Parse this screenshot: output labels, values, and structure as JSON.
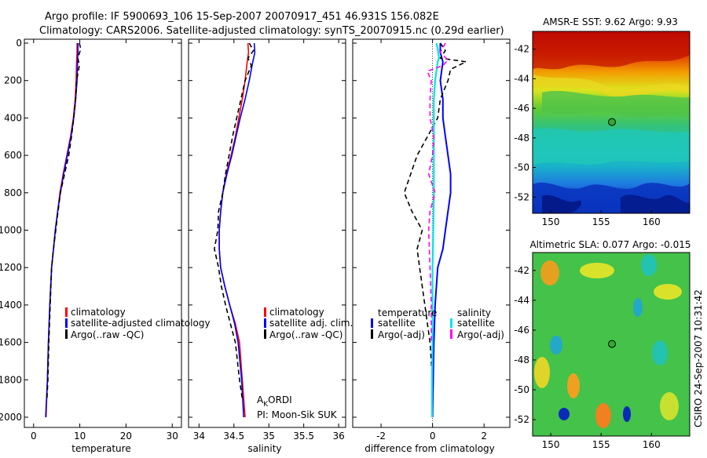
{
  "header": {
    "line1": "Argo profile: IF 5900693_106 15-Sep-2007 20070917_451 46.931S 156.082E",
    "line2": "Climatology: CARS2006. Satellite-adjusted climatology: synTS_20070915.nc (0.29d earlier)"
  },
  "side_label": "CSIRO 24-Sep-2007 10:31:42",
  "colors": {
    "climatology": "#ff0000",
    "satellite": "#0000ff",
    "argo": "#000000",
    "sat_salinity": "#00e5e5",
    "argo_salinity_adj": "#ff00ff",
    "grid": "#000000"
  },
  "chart_data": [
    {
      "type": "line",
      "id": "temperature",
      "xlabel": "temperature",
      "ylabel": "",
      "xlim": [
        -2,
        32
      ],
      "ylim": [
        2050,
        0
      ],
      "xticks": [
        0,
        10,
        20,
        30
      ],
      "yticks": [
        0,
        200,
        400,
        600,
        800,
        1000,
        1200,
        1400,
        1600,
        1800,
        2000
      ],
      "legend": [
        "climatology",
        "satellite-adjusted climatology",
        "Argo(..raw -QC)"
      ],
      "series": [
        {
          "name": "climatology",
          "color": "#ff0000",
          "dash": "",
          "x": [
            9.4,
            9.4,
            9.3,
            9.2,
            9.0,
            8.6,
            8.0,
            7.2,
            6.4,
            5.7,
            5.2,
            4.7,
            4.3,
            3.9,
            3.5,
            3.2,
            3.0,
            2.7
          ],
          "y": [
            0,
            50,
            100,
            200,
            300,
            400,
            500,
            600,
            700,
            800,
            900,
            1000,
            1100,
            1200,
            1400,
            1600,
            1800,
            2000
          ]
        },
        {
          "name": "satellite-adjusted climatology",
          "color": "#0000ff",
          "dash": "",
          "x": [
            9.6,
            9.6,
            9.5,
            9.4,
            9.1,
            8.7,
            8.1,
            7.3,
            6.5,
            5.8,
            5.2,
            4.7,
            4.3,
            3.9,
            3.5,
            3.2,
            3.0,
            2.6
          ],
          "y": [
            0,
            50,
            100,
            200,
            300,
            400,
            500,
            600,
            700,
            800,
            900,
            1000,
            1100,
            1200,
            1400,
            1600,
            1800,
            2000
          ]
        },
        {
          "name": "Argo(..raw -QC)",
          "color": "#000000",
          "dash": "6,4",
          "x": [
            9.9,
            10.2,
            9.6,
            9.9,
            9.3,
            9.1,
            8.7,
            8.2,
            7.6,
            6.7,
            5.8,
            5.3,
            4.8,
            4.3,
            3.9,
            3.6,
            3.3,
            3.1,
            2.9
          ],
          "y": [
            0,
            30,
            80,
            120,
            200,
            300,
            400,
            500,
            600,
            700,
            800,
            900,
            1000,
            1100,
            1200,
            1400,
            1600,
            1800,
            1900
          ]
        }
      ]
    },
    {
      "type": "line",
      "id": "salinity",
      "xlabel": "salinity",
      "ylabel": "",
      "xlim": [
        33.85,
        36.1
      ],
      "ylim": [
        2050,
        0
      ],
      "xticks": [
        34,
        34.5,
        35,
        35.5,
        36
      ],
      "xticklabels": [
        "34",
        "34.5",
        "35",
        "35.5",
        "36"
      ],
      "legend": [
        "climatology",
        "satellite adj. clim.",
        "Argo(..raw -QC)"
      ],
      "annotation": {
        "main": "A",
        "sub": "K",
        "rest": "ORDI",
        "pi": "PI: Moon-Sik SUK"
      },
      "series": [
        {
          "name": "climatology",
          "color": "#ff0000",
          "dash": "",
          "x": [
            34.7,
            34.71,
            34.69,
            34.66,
            34.62,
            34.57,
            34.52,
            34.46,
            34.39,
            34.34,
            34.31,
            34.29,
            34.29,
            34.31,
            34.37,
            34.44,
            34.52,
            34.58,
            34.62,
            34.66
          ],
          "y": [
            0,
            50,
            100,
            200,
            300,
            400,
            500,
            600,
            700,
            800,
            900,
            1000,
            1100,
            1200,
            1300,
            1400,
            1500,
            1600,
            1800,
            2000
          ]
        },
        {
          "name": "satellite adj. clim.",
          "color": "#0000ff",
          "dash": "",
          "x": [
            34.79,
            34.8,
            34.77,
            34.72,
            34.66,
            34.59,
            34.53,
            34.47,
            34.4,
            34.34,
            34.31,
            34.29,
            34.29,
            34.31,
            34.37,
            34.44,
            34.51,
            34.56,
            34.61,
            34.64
          ],
          "y": [
            0,
            50,
            100,
            200,
            300,
            400,
            500,
            600,
            700,
            800,
            900,
            1000,
            1100,
            1200,
            1300,
            1400,
            1500,
            1600,
            1800,
            2000
          ]
        },
        {
          "name": "Argo(..raw -QC)",
          "color": "#000000",
          "dash": "6,4",
          "x": [
            34.72,
            34.78,
            34.7,
            34.75,
            34.66,
            34.6,
            34.54,
            34.48,
            34.43,
            34.38,
            34.34,
            34.28,
            34.27,
            34.22,
            34.28,
            34.32,
            34.38,
            34.45,
            34.52,
            34.58,
            34.62
          ],
          "y": [
            0,
            40,
            80,
            120,
            200,
            300,
            400,
            500,
            600,
            700,
            800,
            900,
            1000,
            1100,
            1200,
            1300,
            1400,
            1500,
            1600,
            1800,
            1900
          ]
        }
      ]
    },
    {
      "type": "line",
      "id": "difference",
      "xlabel": "difference from climatology",
      "ylabel": "",
      "xlim": [
        -3.1,
        3.0
      ],
      "ylim": [
        2050,
        0
      ],
      "xticks": [
        -2,
        0,
        2
      ],
      "legend_temperature": {
        "title": "temperature",
        "items": [
          "satellite",
          "Argo(-adj)"
        ]
      },
      "legend_salinity": {
        "title": "salinity",
        "items": [
          "satellite",
          "Argo(-adj)"
        ]
      },
      "series": [
        {
          "name": "temperature satellite",
          "color": "#0000ff",
          "dash": "",
          "width": 2,
          "x": [
            0.3,
            0.3,
            0.4,
            0.3,
            0.4,
            0.4,
            0.5,
            0.6,
            0.7,
            0.7,
            0.6,
            0.5,
            0.4,
            0.2,
            0.1,
            0.05,
            0.0
          ],
          "y": [
            0,
            50,
            100,
            200,
            300,
            400,
            500,
            600,
            700,
            800,
            900,
            1000,
            1100,
            1200,
            1400,
            1600,
            2000
          ]
        },
        {
          "name": "temperature Argo(-adj)",
          "color": "#000000",
          "dash": "6,4",
          "width": 1.6,
          "x": [
            0.3,
            0.5,
            0.3,
            1.3,
            0.7,
            0.6,
            0.3,
            0.2,
            -0.2,
            -0.6,
            -1.1,
            -0.8,
            -0.4,
            -0.6,
            -0.5,
            -0.3,
            -0.1,
            0.0
          ],
          "y": [
            0,
            40,
            80,
            100,
            140,
            200,
            300,
            400,
            500,
            600,
            800,
            900,
            1000,
            1100,
            1200,
            1400,
            1600,
            1800
          ]
        },
        {
          "name": "salinity satellite",
          "color": "#00e5e5",
          "dash": "",
          "width": 2.2,
          "x": [
            0.15,
            0.2,
            0.25,
            0.2,
            0.1,
            0.05,
            0.05,
            0.05,
            0.05,
            0.05,
            0.05,
            0.03,
            0.0,
            0.0,
            0.0,
            -0.02,
            -0.02
          ],
          "y": [
            0,
            30,
            80,
            100,
            200,
            300,
            400,
            500,
            600,
            700,
            800,
            1000,
            1200,
            1400,
            1600,
            1800,
            2000
          ]
        },
        {
          "name": "salinity Argo(-adj)",
          "color": "#ff00ff",
          "dash": "6,4",
          "width": 1.6,
          "x": [
            0.5,
            0.3,
            0.6,
            0.4,
            -0.2,
            -0.05,
            -0.1,
            -0.1,
            0.05,
            0.0,
            -0.15,
            0.1,
            -0.1,
            -0.15,
            -0.1,
            -0.05,
            -0.05
          ],
          "y": [
            0,
            50,
            90,
            120,
            150,
            200,
            300,
            400,
            500,
            600,
            700,
            800,
            900,
            1000,
            1200,
            1400,
            1600
          ]
        }
      ]
    },
    {
      "type": "heatmap",
      "id": "sst-map",
      "title": "AMSR-E SST: 9.62 Argo: 9.93",
      "xlim": [
        148.2,
        163.8
      ],
      "ylim": [
        -53.1,
        -40.8
      ],
      "xticks": [
        150,
        155,
        160
      ],
      "yticks": [
        -42,
        -44,
        -46,
        -48,
        -50,
        -52
      ],
      "marker": {
        "lon": 156.08,
        "lat": -46.93,
        "color": "#33aa33"
      }
    },
    {
      "type": "heatmap",
      "id": "sla-map",
      "title": "Altimetric SLA: 0.077 Argo: -0.015",
      "xlim": [
        148.2,
        163.8
      ],
      "ylim": [
        -53.1,
        -40.8
      ],
      "xticks": [
        150,
        155,
        160
      ],
      "yticks": [
        -42,
        -44,
        -46,
        -48,
        -50,
        -52
      ],
      "marker": {
        "lon": 156.08,
        "lat": -46.93,
        "color": "#33aa33"
      }
    }
  ]
}
